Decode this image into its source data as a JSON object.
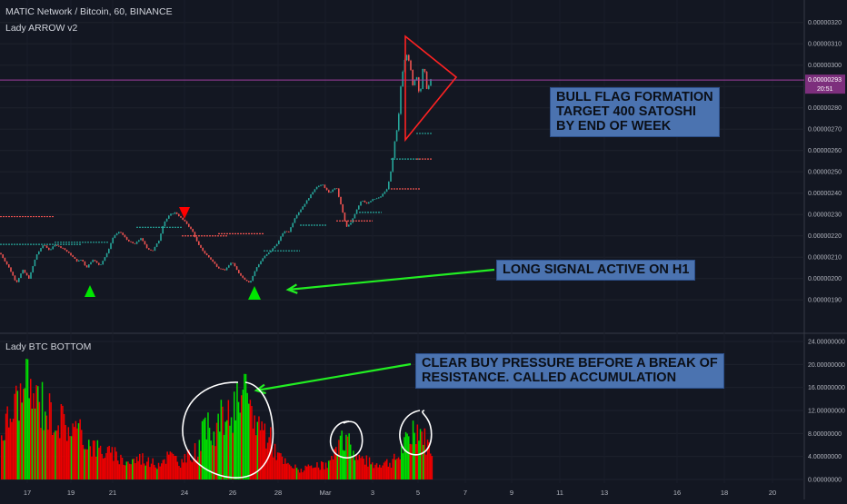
{
  "header": {
    "title": "MATIC Network / Bitcoin, 60, BINANCE",
    "indicator_1": "Lady ARROW v2",
    "indicator_2": "Lady BTC BOTTOM"
  },
  "price_tag": {
    "price": "0.00000293",
    "timer": "20:51"
  },
  "annotations": {
    "bull_flag": [
      "BULL FLAG FORMATION",
      "TARGET 400 SATOSHI",
      "BY END OF WEEK"
    ],
    "long_signal": [
      "LONG SIGNAL ACTIVE ON H1"
    ],
    "buy_pressure": [
      "CLEAR BUY PRESSURE BEFORE A BREAK OF",
      "RESISTANCE. CALLED ACCUMULATION"
    ]
  },
  "colors": {
    "background": "#131722",
    "up": "#26a69a",
    "down": "#ef5350",
    "signal_up": "#00e600",
    "signal_down": "#ff0000",
    "volume_up": "#00dd00",
    "volume_down": "#ee0000",
    "price_line": "#a040a0",
    "annotation_box": "#4b73b0",
    "arrow": "#22ee22"
  },
  "chart_data": [
    {
      "type": "candlestick",
      "title": "MATIC Network / Bitcoin, 60, BINANCE",
      "x_ticks": [
        "17",
        "19",
        "21",
        "24",
        "26",
        "28",
        "Mar",
        "3",
        "5",
        "7",
        "9",
        "11",
        "13",
        "16",
        "18",
        "20"
      ],
      "ylim": [
        1.85e-06,
        3.22e-06
      ],
      "y_ticks": [
        "0.00000190",
        "0.00000200",
        "0.00000210",
        "0.00000220",
        "0.00000230",
        "0.00000240",
        "0.00000250",
        "0.00000260",
        "0.00000270",
        "0.00000280",
        "0.00000290",
        "0.00000300",
        "0.00000310",
        "0.00000320"
      ],
      "current_price": 2.93e-06,
      "price_path": [
        [
          0,
          2.12e-06
        ],
        [
          10,
          2.05e-06
        ],
        [
          18,
          1.98e-06
        ],
        [
          25,
          2.04e-06
        ],
        [
          32,
          2e-06
        ],
        [
          40,
          2.11e-06
        ],
        [
          48,
          2.16e-06
        ],
        [
          55,
          2.13e-06
        ],
        [
          60,
          2.16e-06
        ],
        [
          70,
          2.14e-06
        ],
        [
          78,
          2.11e-06
        ],
        [
          85,
          2.08e-06
        ],
        [
          90,
          2.09e-06
        ],
        [
          95,
          2.05e-06
        ],
        [
          102,
          2.09e-06
        ],
        [
          110,
          2.06e-06
        ],
        [
          118,
          2.12e-06
        ],
        [
          125,
          2.2e-06
        ],
        [
          132,
          2.22e-06
        ],
        [
          140,
          2.18e-06
        ],
        [
          148,
          2.16e-06
        ],
        [
          155,
          2.19e-06
        ],
        [
          162,
          2.14e-06
        ],
        [
          168,
          2.13e-06
        ],
        [
          175,
          2.18e-06
        ],
        [
          180,
          2.26e-06
        ],
        [
          187,
          2.3e-06
        ],
        [
          193,
          2.31e-06
        ],
        [
          200,
          2.28e-06
        ],
        [
          205,
          2.26e-06
        ],
        [
          212,
          2.22e-06
        ],
        [
          218,
          2.16e-06
        ],
        [
          225,
          2.12e-06
        ],
        [
          232,
          2.09e-06
        ],
        [
          240,
          2.05e-06
        ],
        [
          248,
          2.04e-06
        ],
        [
          255,
          2.08e-06
        ],
        [
          262,
          2.03e-06
        ],
        [
          268,
          2e-06
        ],
        [
          275,
          1.98e-06
        ],
        [
          282,
          2.05e-06
        ],
        [
          290,
          2.1e-06
        ],
        [
          298,
          2.13e-06
        ],
        [
          306,
          2.17e-06
        ],
        [
          312,
          2.22e-06
        ],
        [
          318,
          2.22e-06
        ],
        [
          325,
          2.29e-06
        ],
        [
          332,
          2.33e-06
        ],
        [
          340,
          2.38e-06
        ],
        [
          348,
          2.43e-06
        ],
        [
          355,
          2.44e-06
        ],
        [
          362,
          2.4e-06
        ],
        [
          370,
          2.43e-06
        ],
        [
          376,
          2.33e-06
        ],
        [
          381,
          2.24e-06
        ],
        [
          386,
          2.26e-06
        ],
        [
          392,
          2.32e-06
        ],
        [
          398,
          2.37e-06
        ],
        [
          404,
          2.35e-06
        ],
        [
          410,
          2.37e-06
        ],
        [
          418,
          2.38e-06
        ],
        [
          426,
          2.42e-06
        ],
        [
          431,
          2.52e-06
        ],
        [
          435,
          2.66e-06
        ],
        [
          438,
          2.72e-06
        ],
        [
          441,
          2.9e-06
        ],
        [
          444,
          3e-06
        ],
        [
          447,
          3.06e-06
        ],
        [
          451,
          3.01e-06
        ],
        [
          454,
          2.9e-06
        ],
        [
          458,
          2.96e-06
        ],
        [
          462,
          2.85e-06
        ],
        [
          466,
          3.01e-06
        ],
        [
          470,
          2.88e-06
        ],
        [
          474,
          2.93e-06
        ]
      ],
      "signals": [
        {
          "type": "buy",
          "x_day": "19-20",
          "price": 2e-06
        },
        {
          "type": "sell",
          "x_day": "24",
          "price": 2.33e-06
        },
        {
          "type": "buy",
          "x_day": "27",
          "price": 1.98e-06
        }
      ],
      "pattern": {
        "name": "triangle",
        "apex_price": 2.93e-06,
        "top_price": 3.11e-06,
        "bottom_price": 2.7e-06
      }
    },
    {
      "type": "bar",
      "title": "Lady BTC BOTTOM",
      "ylim": [
        0,
        24
      ],
      "y_ticks": [
        "0.00000000",
        "4.00000000",
        "8.00000000",
        "12.00000000",
        "16.00000000",
        "20.00000000",
        "24.00000000"
      ],
      "profile": [
        [
          0,
          9
        ],
        [
          18,
          16
        ],
        [
          30,
          17
        ],
        [
          45,
          15
        ],
        [
          60,
          13
        ],
        [
          75,
          11
        ],
        [
          90,
          9
        ],
        [
          100,
          7
        ],
        [
          110,
          6
        ],
        [
          125,
          5
        ],
        [
          140,
          3.5
        ],
        [
          155,
          4.5
        ],
        [
          170,
          3
        ],
        [
          185,
          5
        ],
        [
          200,
          3.5
        ],
        [
          215,
          6
        ],
        [
          225,
          9
        ],
        [
          240,
          11
        ],
        [
          255,
          13
        ],
        [
          270,
          15
        ],
        [
          282,
          12
        ],
        [
          295,
          9
        ],
        [
          305,
          5
        ],
        [
          315,
          3
        ],
        [
          330,
          2
        ],
        [
          345,
          2.5
        ],
        [
          360,
          3
        ],
        [
          372,
          6
        ],
        [
          380,
          8
        ],
        [
          390,
          5
        ],
        [
          400,
          4
        ],
        [
          410,
          3
        ],
        [
          420,
          3.5
        ],
        [
          430,
          3.5
        ],
        [
          440,
          5
        ],
        [
          450,
          8
        ],
        [
          457,
          11
        ],
        [
          464,
          9
        ],
        [
          470,
          7
        ],
        [
          476,
          6
        ]
      ],
      "green_zones": [
        [
          18,
          50
        ],
        [
          221,
          276
        ],
        [
          372,
          392
        ],
        [
          440,
          468
        ]
      ]
    }
  ]
}
